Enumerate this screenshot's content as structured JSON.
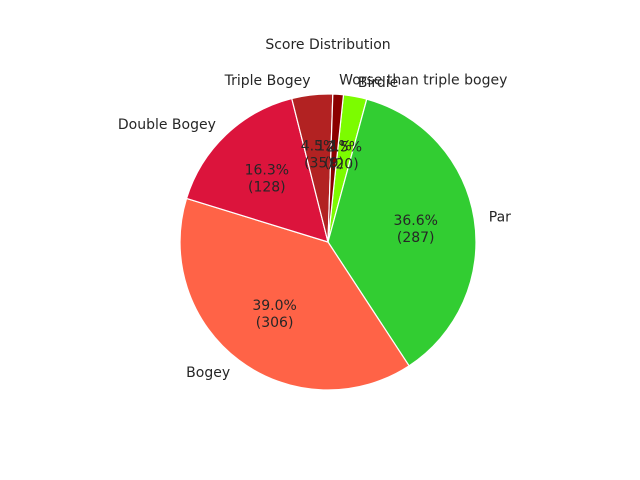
{
  "chart_data": {
    "type": "pie",
    "title": "Score Distribution",
    "start_angle_deg": 84,
    "direction": "clockwise",
    "slices": [
      {
        "label": "Birdie",
        "value": 20,
        "percent": "2.5%",
        "color": "#7cfc00"
      },
      {
        "label": "Par",
        "value": 287,
        "percent": "36.6%",
        "color": "#32cd32"
      },
      {
        "label": "Bogey",
        "value": 306,
        "percent": "39.0%",
        "color": "#ff6347"
      },
      {
        "label": "Double Bogey",
        "value": 128,
        "percent": "16.3%",
        "color": "#dc143c"
      },
      {
        "label": "Triple Bogey",
        "value": 35,
        "percent": "4.5%",
        "color": "#b22222"
      },
      {
        "label": "Worse than triple bogey",
        "value": 9,
        "percent": "1.1%",
        "color": "#8b0000"
      }
    ]
  }
}
